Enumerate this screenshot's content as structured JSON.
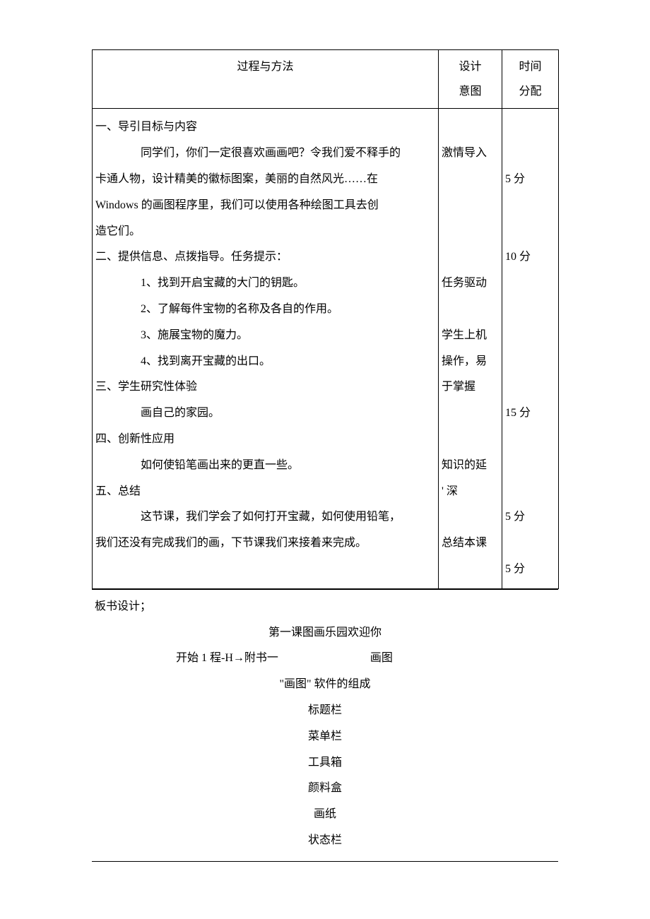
{
  "table": {
    "headers": {
      "c1": "过程与方法",
      "c2_line1": "设计",
      "c2_line2": "意图",
      "c3_line1": "时间",
      "c3_line2": "分配"
    },
    "body": {
      "c1": {
        "sec1_title": "一、导引目标与内容",
        "sec1_p1": "同学们，你们一定很喜欢画画吧？令我们爱不释手的",
        "sec1_p2": "卡通人物，设计精美的徽标图案，美丽的自然风光……在",
        "sec1_p3": "Windows 的画图程序里，我们可以使用各种绘图工具去创",
        "sec1_p4": "造它们。",
        "sec2_title": "二、提供信息、点拨指导。任务提示：",
        "sec2_i1": "1、找到开启宝藏的大门的钥匙。",
        "sec2_i2": "2、了解每件宝物的名称及各自的作用。",
        "sec2_i3": "3、施展宝物的魔力。",
        "sec2_i4": "4、找到离开宝藏的出口。",
        "sec3_title": "三、学生研究性体验",
        "sec3_p1": "画自己的家园。",
        "sec4_title": "四、创新性应用",
        "sec4_p1": "如何使铅笔画出来的更直一些。",
        "sec5_title": "五、总结",
        "sec5_p1": "这节课，我们学会了如何打开宝藏，如何使用铅笔，",
        "sec5_p2": "我们还没有完成我们的画，下节课我们来接着来完成。"
      },
      "c2": {
        "gap1_lines": 1,
        "t1": "激情导入",
        "gap2_lines": 4,
        "t2": "任务驱动",
        "gap3_lines": 1,
        "t3": "学生上机",
        "t4": "操作，易",
        "t5": "于掌握",
        "gap4_lines": 2,
        "t6": "知识的延",
        "t7": "' 深",
        "gap5_lines": 1,
        "t8": "总结本课"
      },
      "c3": {
        "gap1_lines": 2,
        "t1": "5 分",
        "gap2_lines": 2,
        "t2": "10 分",
        "gap3_lines": 5,
        "t3": "15 分",
        "gap4_lines": 3,
        "t4": "5 分",
        "gap5_lines": 1,
        "t5": "5 分"
      }
    }
  },
  "board": {
    "label": "板书设计；",
    "title": "第一课图画乐园欢迎你",
    "open_left": "开始 1 程-H→附书一",
    "open_right": "画图",
    "compose": "\"画图\" 软件的组成",
    "items": {
      "i1": "标题栏",
      "i2": "菜单栏",
      "i3": "工具箱",
      "i4": "颜料盒",
      "i5": "画纸",
      "i6": "状态栏"
    }
  }
}
